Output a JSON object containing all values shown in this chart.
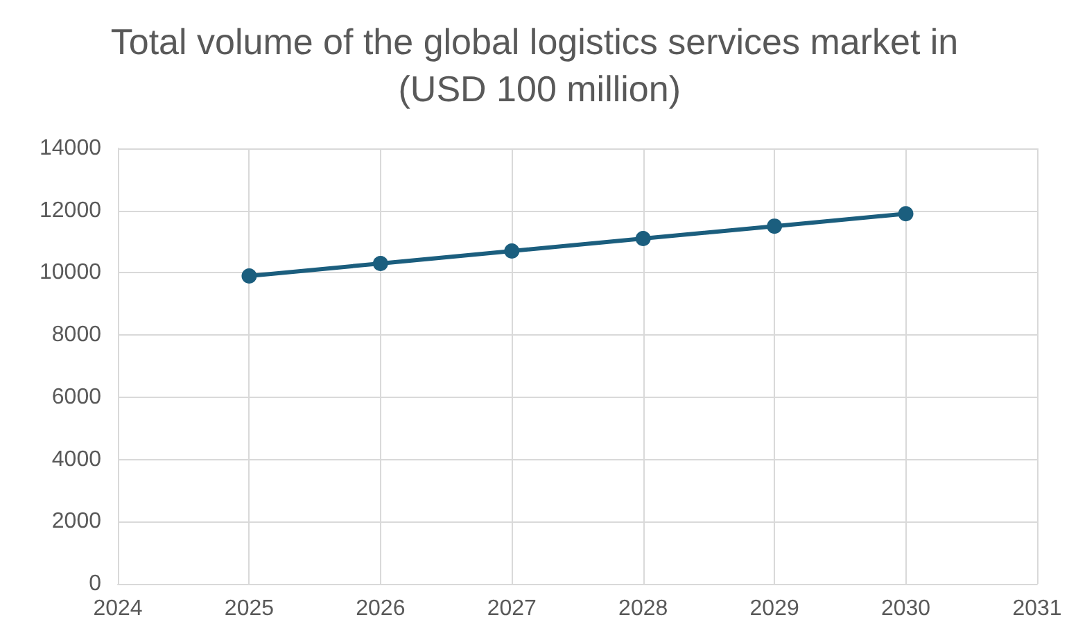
{
  "chart_data": {
    "type": "line",
    "title": "Total volume of the global logistics services market in (USD 100 million)",
    "x": [
      2025,
      2026,
      2027,
      2028,
      2029,
      2030
    ],
    "series": [
      {
        "color": "#1b5e7e",
        "values": [
          9900,
          10300,
          10700,
          11100,
          11500,
          11900
        ]
      }
    ],
    "xlim": [
      2024,
      2031
    ],
    "xticks": [
      2024,
      2025,
      2026,
      2027,
      2028,
      2029,
      2030,
      2031
    ],
    "ylim": [
      0,
      14000
    ],
    "yticks": [
      0,
      2000,
      4000,
      6000,
      8000,
      10000,
      12000,
      14000
    ],
    "grid": true,
    "marker": "circle",
    "line_style": "solid"
  }
}
